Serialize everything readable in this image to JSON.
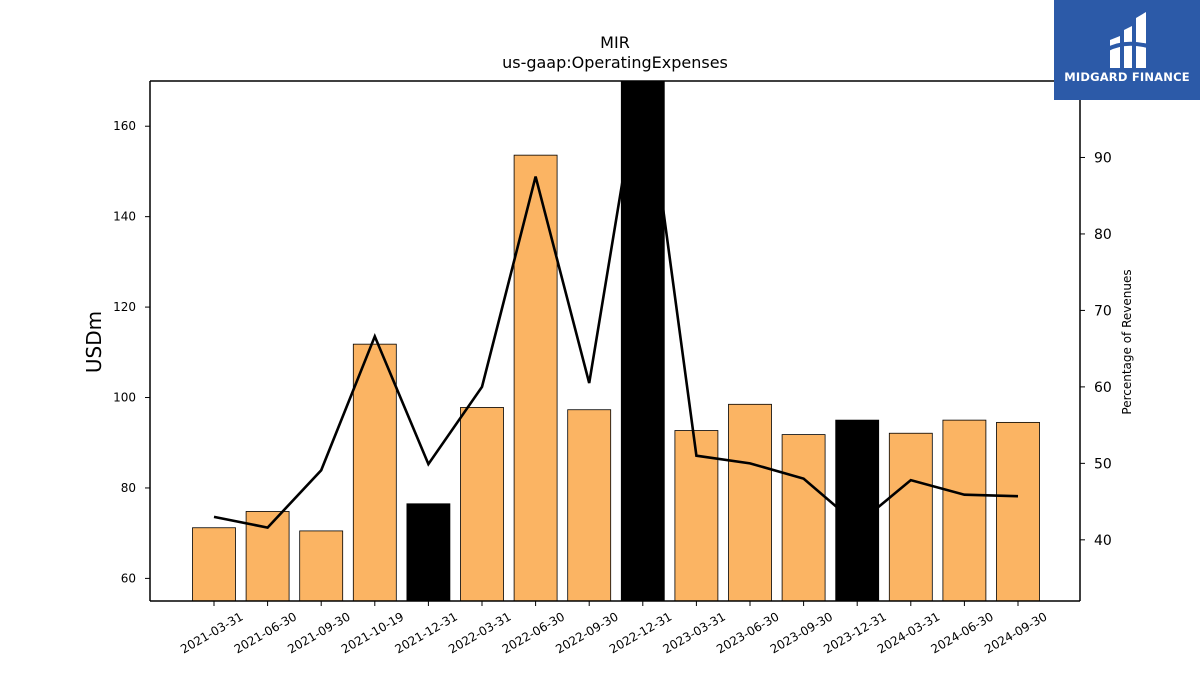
{
  "chart_data": {
    "type": "bar",
    "title": "MIR",
    "subtitle": "us-gaap:OperatingExpenses",
    "ylabel": "USDm",
    "y2label": "Percentage of Revenues",
    "ylim": [
      55,
      170
    ],
    "y2lim": [
      32,
      100
    ],
    "yticks": [
      60,
      80,
      100,
      120,
      140,
      160
    ],
    "y2ticks": [
      40,
      50,
      60,
      70,
      80,
      90
    ],
    "categories": [
      "2021-03-31",
      "2021-06-30",
      "2021-09-30",
      "2021-10-19",
      "2021-12-31",
      "2022-03-31",
      "2022-06-30",
      "2022-09-30",
      "2022-12-31",
      "2023-03-31",
      "2023-06-30",
      "2023-09-30",
      "2023-12-31",
      "2024-03-31",
      "2024-06-30",
      "2024-09-30"
    ],
    "series": [
      {
        "kind": "bar",
        "values": [
          71.2,
          74.8,
          70.5,
          111.8,
          76.5,
          97.8,
          153.6,
          97.3,
          175.0,
          92.7,
          98.5,
          91.8,
          95.0,
          92.1,
          95.0,
          94.5
        ],
        "annual": [
          false,
          false,
          false,
          false,
          true,
          false,
          false,
          false,
          true,
          false,
          false,
          false,
          true,
          false,
          false,
          false
        ]
      },
      {
        "kind": "line",
        "axis": "right",
        "values": [
          43.0,
          41.6,
          49.1,
          66.6,
          49.9,
          60.0,
          87.5,
          60.5,
          103.0,
          51.0,
          50.0,
          48.0,
          42.0,
          47.8,
          45.9,
          45.7
        ]
      }
    ],
    "colors": {
      "bar": "#fbb463",
      "annual_bar": "#000000",
      "line": "#000000"
    },
    "grid": false
  },
  "logo": {
    "text": "MIDGARD FINANCE"
  }
}
